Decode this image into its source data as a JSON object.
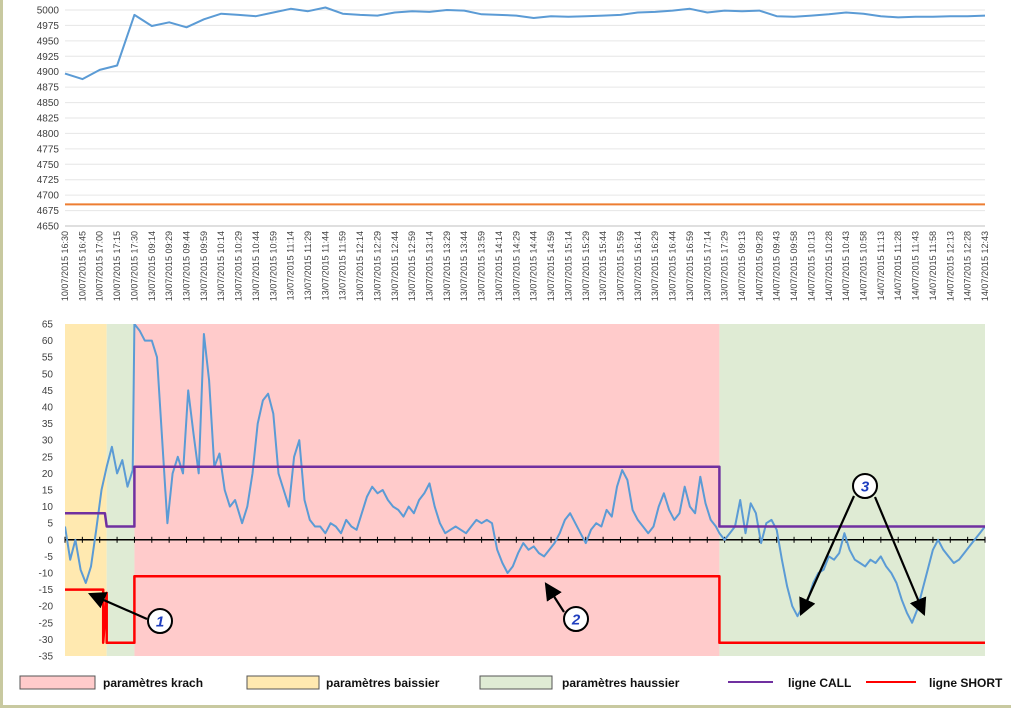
{
  "chart_data": [
    {
      "type": "line",
      "title": "",
      "xlabel": "",
      "ylabel": "",
      "ylim": [
        4650,
        5000
      ],
      "yticks": [
        5000,
        4975,
        4950,
        4925,
        4900,
        4875,
        4850,
        4825,
        4800,
        4775,
        4750,
        4725,
        4700,
        4675,
        4650
      ],
      "categories": [
        "10/07/2015 16:30",
        "10/07/2015 16:45",
        "10/07/2015 17:00",
        "10/07/2015 17:15",
        "10/07/2015 17:30",
        "13/07/2015 09:14",
        "13/07/2015 09:29",
        "13/07/2015 09:44",
        "13/07/2015 09:59",
        "13/07/2015 10:14",
        "13/07/2015 10:29",
        "13/07/2015 10:44",
        "13/07/2015 10:59",
        "13/07/2015 11:14",
        "13/07/2015 11:29",
        "13/07/2015 11:44",
        "13/07/2015 11:59",
        "13/07/2015 12:14",
        "13/07/2015 12:29",
        "13/07/2015 12:44",
        "13/07/2015 12:59",
        "13/07/2015 13:14",
        "13/07/2015 13:29",
        "13/07/2015 13:44",
        "13/07/2015 13:59",
        "13/07/2015 14:14",
        "13/07/2015 14:29",
        "13/07/2015 14:44",
        "13/07/2015 14:59",
        "13/07/2015 15:14",
        "13/07/2015 15:29",
        "13/07/2015 15:44",
        "13/07/2015 15:59",
        "13/07/2015 16:14",
        "13/07/2015 16:29",
        "13/07/2015 16:44",
        "13/07/2015 16:59",
        "13/07/2015 17:14",
        "13/07/2015 17:29",
        "14/07/2015 09:13",
        "14/07/2015 09:28",
        "14/07/2015 09:43",
        "14/07/2015 09:58",
        "14/07/2015 10:13",
        "14/07/2015 10:28",
        "14/07/2015 10:43",
        "14/07/2015 10:58",
        "14/07/2015 11:13",
        "14/07/2015 11:28",
        "14/07/2015 11:43",
        "14/07/2015 11:58",
        "14/07/2015 12:13",
        "14/07/2015 12:28",
        "14/07/2015 12:43"
      ],
      "series": [
        {
          "color": "#5b9bd5",
          "values": [
            4897,
            4888,
            4903,
            4910,
            4992,
            4974,
            4980,
            4972,
            4985,
            4994,
            4992,
            4990,
            4996,
            5002,
            4998,
            5004,
            4994,
            4992,
            4991,
            4996,
            4998,
            4997,
            5000,
            4999,
            4993,
            4992,
            4991,
            4987,
            4990,
            4989,
            4990,
            4991,
            4992,
            4996,
            4997,
            4999,
            5002,
            4996,
            4999,
            4998,
            4999,
            4990,
            4989,
            4991,
            4993,
            4996,
            4994,
            4990,
            4988,
            4989,
            4989,
            4990,
            4990,
            4991
          ]
        },
        {
          "color": "#ed7d31",
          "values": [
            4685,
            4685,
            4685,
            4685,
            4685,
            4685,
            4685,
            4685,
            4685,
            4685,
            4685,
            4685,
            4685,
            4685,
            4685,
            4685,
            4685,
            4685,
            4685,
            4685,
            4685,
            4685,
            4685,
            4685,
            4685,
            4685,
            4685,
            4685,
            4685,
            4685,
            4685,
            4685,
            4685,
            4685,
            4685,
            4685,
            4685,
            4685,
            4685,
            4685,
            4685,
            4685,
            4685,
            4685,
            4685,
            4685,
            4685,
            4685,
            4685,
            4685,
            4685,
            4685,
            4685,
            4685
          ]
        }
      ]
    },
    {
      "type": "line",
      "title": "",
      "xlabel": "",
      "ylabel": "",
      "ylim": [
        -35,
        65
      ],
      "yticks": [
        65,
        60,
        55,
        50,
        45,
        40,
        35,
        30,
        25,
        20,
        15,
        10,
        5,
        0,
        -5,
        -10,
        -15,
        -20,
        -25,
        -30,
        -35
      ],
      "x_range": [
        0,
        53
      ],
      "background_zones": [
        {
          "label": "paramètres baissier",
          "color": "#ffe9b0",
          "from": 0,
          "to": 2.4
        },
        {
          "label": "paramètres haussier",
          "color": "#dfebd4",
          "from": 2.4,
          "to": 4
        },
        {
          "label": "paramètres krach",
          "color": "#ffcbcb",
          "from": 4,
          "to": 37.7
        },
        {
          "label": "paramètres haussier",
          "color": "#dfebd4",
          "from": 37.7,
          "to": 53
        }
      ],
      "series": [
        {
          "color": "#5b9bd5",
          "points": [
            [
              0,
              4
            ],
            [
              0.3,
              -6
            ],
            [
              0.6,
              0
            ],
            [
              0.9,
              -9
            ],
            [
              1.2,
              -13
            ],
            [
              1.5,
              -8
            ],
            [
              1.8,
              3
            ],
            [
              2.1,
              15
            ],
            [
              2.4,
              22
            ],
            [
              2.7,
              28
            ],
            [
              3.0,
              20
            ],
            [
              3.3,
              24
            ],
            [
              3.6,
              16
            ],
            [
              3.9,
              21
            ],
            [
              4.0,
              65
            ],
            [
              4.3,
              63
            ],
            [
              4.6,
              60
            ],
            [
              5.0,
              60
            ],
            [
              5.3,
              55
            ],
            [
              5.6,
              30
            ],
            [
              5.9,
              5
            ],
            [
              6.2,
              20
            ],
            [
              6.5,
              25
            ],
            [
              6.8,
              20
            ],
            [
              7.1,
              45
            ],
            [
              7.4,
              32
            ],
            [
              7.7,
              20
            ],
            [
              8.0,
              62
            ],
            [
              8.3,
              48
            ],
            [
              8.6,
              22
            ],
            [
              8.9,
              26
            ],
            [
              9.2,
              15
            ],
            [
              9.5,
              10
            ],
            [
              9.8,
              12
            ],
            [
              10.2,
              5
            ],
            [
              10.5,
              10
            ],
            [
              10.8,
              20
            ],
            [
              11.1,
              35
            ],
            [
              11.4,
              42
            ],
            [
              11.7,
              44
            ],
            [
              12.0,
              38
            ],
            [
              12.3,
              20
            ],
            [
              12.6,
              15
            ],
            [
              12.9,
              10
            ],
            [
              13.2,
              25
            ],
            [
              13.5,
              30
            ],
            [
              13.8,
              12
            ],
            [
              14.1,
              6
            ],
            [
              14.4,
              4
            ],
            [
              14.7,
              4
            ],
            [
              15.0,
              2
            ],
            [
              15.3,
              5
            ],
            [
              15.6,
              4
            ],
            [
              15.9,
              2
            ],
            [
              16.2,
              6
            ],
            [
              16.5,
              4
            ],
            [
              16.8,
              3
            ],
            [
              17.1,
              8
            ],
            [
              17.4,
              13
            ],
            [
              17.7,
              16
            ],
            [
              18.0,
              14
            ],
            [
              18.3,
              15
            ],
            [
              18.6,
              12
            ],
            [
              18.9,
              10
            ],
            [
              19.2,
              9
            ],
            [
              19.5,
              7
            ],
            [
              19.8,
              10
            ],
            [
              20.1,
              8
            ],
            [
              20.4,
              12
            ],
            [
              20.7,
              14
            ],
            [
              21.0,
              17
            ],
            [
              21.3,
              10
            ],
            [
              21.6,
              5
            ],
            [
              21.9,
              2
            ],
            [
              22.2,
              3
            ],
            [
              22.5,
              4
            ],
            [
              22.8,
              3
            ],
            [
              23.1,
              2
            ],
            [
              23.4,
              4
            ],
            [
              23.7,
              6
            ],
            [
              24.0,
              5
            ],
            [
              24.3,
              6
            ],
            [
              24.6,
              5
            ],
            [
              24.9,
              -3
            ],
            [
              25.2,
              -7
            ],
            [
              25.5,
              -10
            ],
            [
              25.8,
              -8
            ],
            [
              26.1,
              -4
            ],
            [
              26.4,
              -1
            ],
            [
              26.7,
              -3
            ],
            [
              27.0,
              -2
            ],
            [
              27.3,
              -4
            ],
            [
              27.6,
              -5
            ],
            [
              27.9,
              -3
            ],
            [
              28.2,
              -1
            ],
            [
              28.5,
              2
            ],
            [
              28.8,
              6
            ],
            [
              29.1,
              8
            ],
            [
              29.4,
              5
            ],
            [
              29.7,
              2
            ],
            [
              30.0,
              -1
            ],
            [
              30.3,
              3
            ],
            [
              30.6,
              5
            ],
            [
              30.9,
              4
            ],
            [
              31.2,
              9
            ],
            [
              31.5,
              7
            ],
            [
              31.8,
              16
            ],
            [
              32.1,
              21
            ],
            [
              32.4,
              18
            ],
            [
              32.7,
              9
            ],
            [
              33.0,
              6
            ],
            [
              33.3,
              4
            ],
            [
              33.6,
              2
            ],
            [
              33.9,
              4
            ],
            [
              34.2,
              10
            ],
            [
              34.5,
              14
            ],
            [
              34.8,
              9
            ],
            [
              35.1,
              6
            ],
            [
              35.4,
              8
            ],
            [
              35.7,
              16
            ],
            [
              36.0,
              10
            ],
            [
              36.3,
              8
            ],
            [
              36.6,
              19
            ],
            [
              36.9,
              11
            ],
            [
              37.2,
              6
            ],
            [
              37.5,
              4
            ],
            [
              37.7,
              2
            ],
            [
              38.0,
              0
            ],
            [
              38.3,
              2
            ],
            [
              38.6,
              4
            ],
            [
              38.9,
              12
            ],
            [
              39.2,
              2
            ],
            [
              39.5,
              11
            ],
            [
              39.8,
              8
            ],
            [
              40.1,
              -1
            ],
            [
              40.4,
              5
            ],
            [
              40.7,
              6
            ],
            [
              41.0,
              3
            ],
            [
              41.3,
              -6
            ],
            [
              41.6,
              -14
            ],
            [
              41.9,
              -20
            ],
            [
              42.2,
              -23
            ],
            [
              42.5,
              -20
            ],
            [
              42.8,
              -18
            ],
            [
              43.1,
              -13
            ],
            [
              43.4,
              -10
            ],
            [
              43.7,
              -9
            ],
            [
              44.0,
              -5
            ],
            [
              44.3,
              -6
            ],
            [
              44.6,
              -4
            ],
            [
              44.9,
              2
            ],
            [
              45.2,
              -3
            ],
            [
              45.5,
              -6
            ],
            [
              45.8,
              -7
            ],
            [
              46.1,
              -8
            ],
            [
              46.4,
              -6
            ],
            [
              46.7,
              -7
            ],
            [
              47.0,
              -5
            ],
            [
              47.3,
              -8
            ],
            [
              47.6,
              -10
            ],
            [
              47.9,
              -13
            ],
            [
              48.2,
              -18
            ],
            [
              48.5,
              -22
            ],
            [
              48.8,
              -25
            ],
            [
              49.1,
              -21
            ],
            [
              49.4,
              -15
            ],
            [
              49.7,
              -9
            ],
            [
              50.0,
              -3
            ],
            [
              50.3,
              0
            ],
            [
              50.6,
              -3
            ],
            [
              50.9,
              -5
            ],
            [
              51.2,
              -7
            ],
            [
              51.5,
              -6
            ],
            [
              51.8,
              -4
            ],
            [
              52.1,
              -2
            ],
            [
              52.4,
              0
            ],
            [
              52.7,
              2
            ],
            [
              53.0,
              4
            ]
          ]
        },
        {
          "name": "ligne CALL",
          "color": "#7030a0",
          "points": [
            [
              0,
              8
            ],
            [
              2.3,
              8
            ],
            [
              2.4,
              4
            ],
            [
              4.0,
              4
            ],
            [
              4.0,
              22
            ],
            [
              37.7,
              22
            ],
            [
              37.7,
              4
            ],
            [
              53,
              4
            ]
          ]
        },
        {
          "name": "ligne SHORT",
          "color": "#ff0000",
          "points": [
            [
              0,
              -15
            ],
            [
              2.2,
              -15
            ],
            [
              2.2,
              -31
            ],
            [
              2.4,
              -16
            ],
            [
              2.4,
              -31
            ],
            [
              4.0,
              -31
            ],
            [
              4.0,
              -11
            ],
            [
              37.7,
              -11
            ],
            [
              37.7,
              -31
            ],
            [
              53,
              -31
            ]
          ]
        }
      ],
      "annotations": [
        {
          "label": "1"
        },
        {
          "label": "2"
        },
        {
          "label": "3"
        }
      ]
    }
  ],
  "legend": [
    {
      "label": "paramètres krach",
      "type": "box",
      "color": "#ffcbcb"
    },
    {
      "label": "paramètres baissier",
      "type": "box",
      "color": "#ffe9b0"
    },
    {
      "label": "paramètres haussier",
      "type": "box",
      "color": "#dfebd4"
    },
    {
      "label": "ligne CALL",
      "type": "line",
      "color": "#7030a0"
    },
    {
      "label": "ligne SHORT",
      "type": "line",
      "color": "#ff0000"
    }
  ]
}
